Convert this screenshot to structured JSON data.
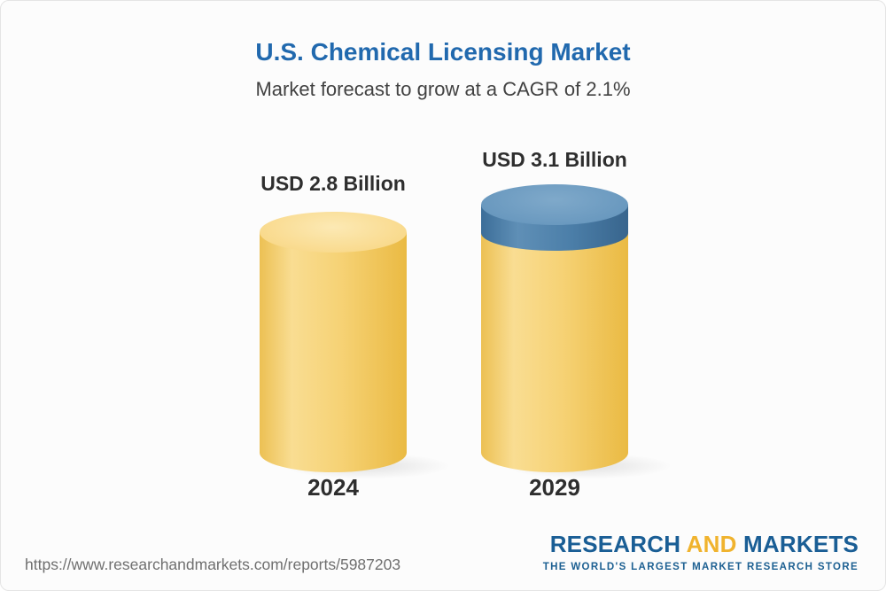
{
  "title": "U.S. Chemical Licensing Market",
  "subtitle": "Market forecast to grow at a CAGR of 2.1%",
  "chart_data": {
    "type": "bar",
    "variant": "3d-cylinder",
    "categories": [
      "2024",
      "2029"
    ],
    "values": [
      2.8,
      3.1
    ],
    "unit": "USD Billion",
    "value_labels": [
      "USD 2.8 Billion",
      "USD 3.1 Billion"
    ],
    "title": "U.S. Chemical Licensing Market",
    "subtitle": "Market forecast to grow at a CAGR of 2.1%",
    "cagr_percent": 2.1,
    "legend": "none",
    "colors": {
      "cylinder": "#F5CE6B",
      "growth_cap": "#4C7FA9",
      "title_text": "#2169AE",
      "label_text": "#2E2E2E"
    }
  },
  "footer": {
    "url": "https://www.researchandmarkets.com/reports/5987203",
    "logo": {
      "research": "RESEARCH",
      "and": "AND",
      "markets": "MARKETS",
      "tagline": "THE WORLD'S LARGEST MARKET RESEARCH STORE"
    }
  }
}
